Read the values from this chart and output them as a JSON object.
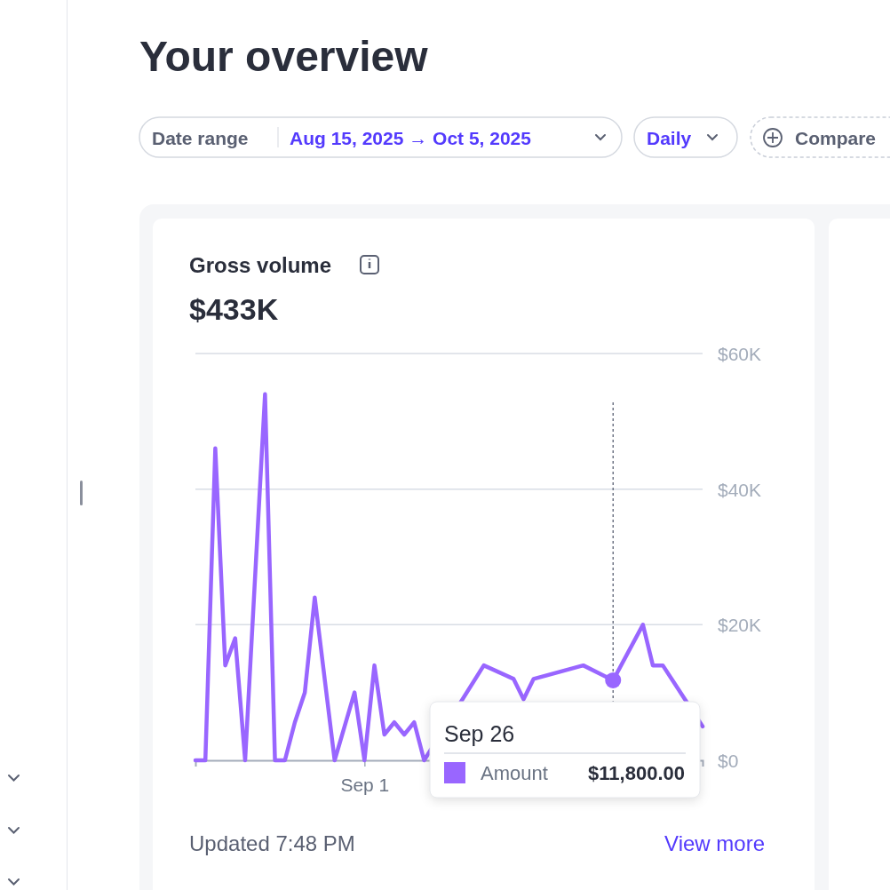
{
  "chart_data": {
    "type": "line",
    "title": "Gross volume",
    "subtitle": "$433K",
    "annotations": [
      "Your overview",
      "Date range",
      "Aug 15, 2025 → Oct 5, 2025",
      "Daily",
      "Compare",
      "Updated 7:48 PM",
      "View more",
      {
        "text": "Sep 26",
        "y": 11800
      },
      "$11,800.00"
    ],
    "categories": [
      null,
      null,
      null,
      null,
      null,
      null,
      null,
      null,
      null,
      null,
      null,
      null,
      null,
      null,
      null,
      null,
      null,
      "Sep 1",
      null,
      null,
      null,
      null,
      null,
      null,
      null,
      null,
      null,
      null,
      null,
      null,
      null,
      null,
      null,
      null,
      null,
      null,
      null,
      null,
      null,
      null,
      null,
      null,
      null,
      null,
      null,
      null,
      null,
      null,
      null,
      null,
      null,
      null
    ],
    "series": [
      {
        "name": "Amount",
        "color": "#9966ff",
        "values": [
          0,
          0,
          46000,
          14000,
          18000,
          0,
          27000,
          54000,
          0,
          0,
          5600,
          10000,
          24000,
          12000,
          0,
          5000,
          10000,
          0,
          14000,
          3800,
          5600,
          3800,
          5600,
          0,
          null,
          null,
          null,
          null,
          null,
          14000,
          null,
          null,
          12000,
          9000,
          12000,
          null,
          null,
          null,
          null,
          14000,
          null,
          null,
          11800,
          null,
          null,
          20000,
          14000,
          14000,
          null,
          null,
          null,
          5000
        ]
      }
    ],
    "ylim": [
      0,
      60000
    ],
    "yticks": [
      {
        "value": 0,
        "label": "$0"
      },
      {
        "value": 20000,
        "label": "$20K"
      },
      {
        "value": 40000,
        "label": "$40K"
      },
      {
        "value": 60000,
        "label": "$60K"
      }
    ],
    "grid": "y",
    "line_style": "solid",
    "marker": "none"
  }
}
